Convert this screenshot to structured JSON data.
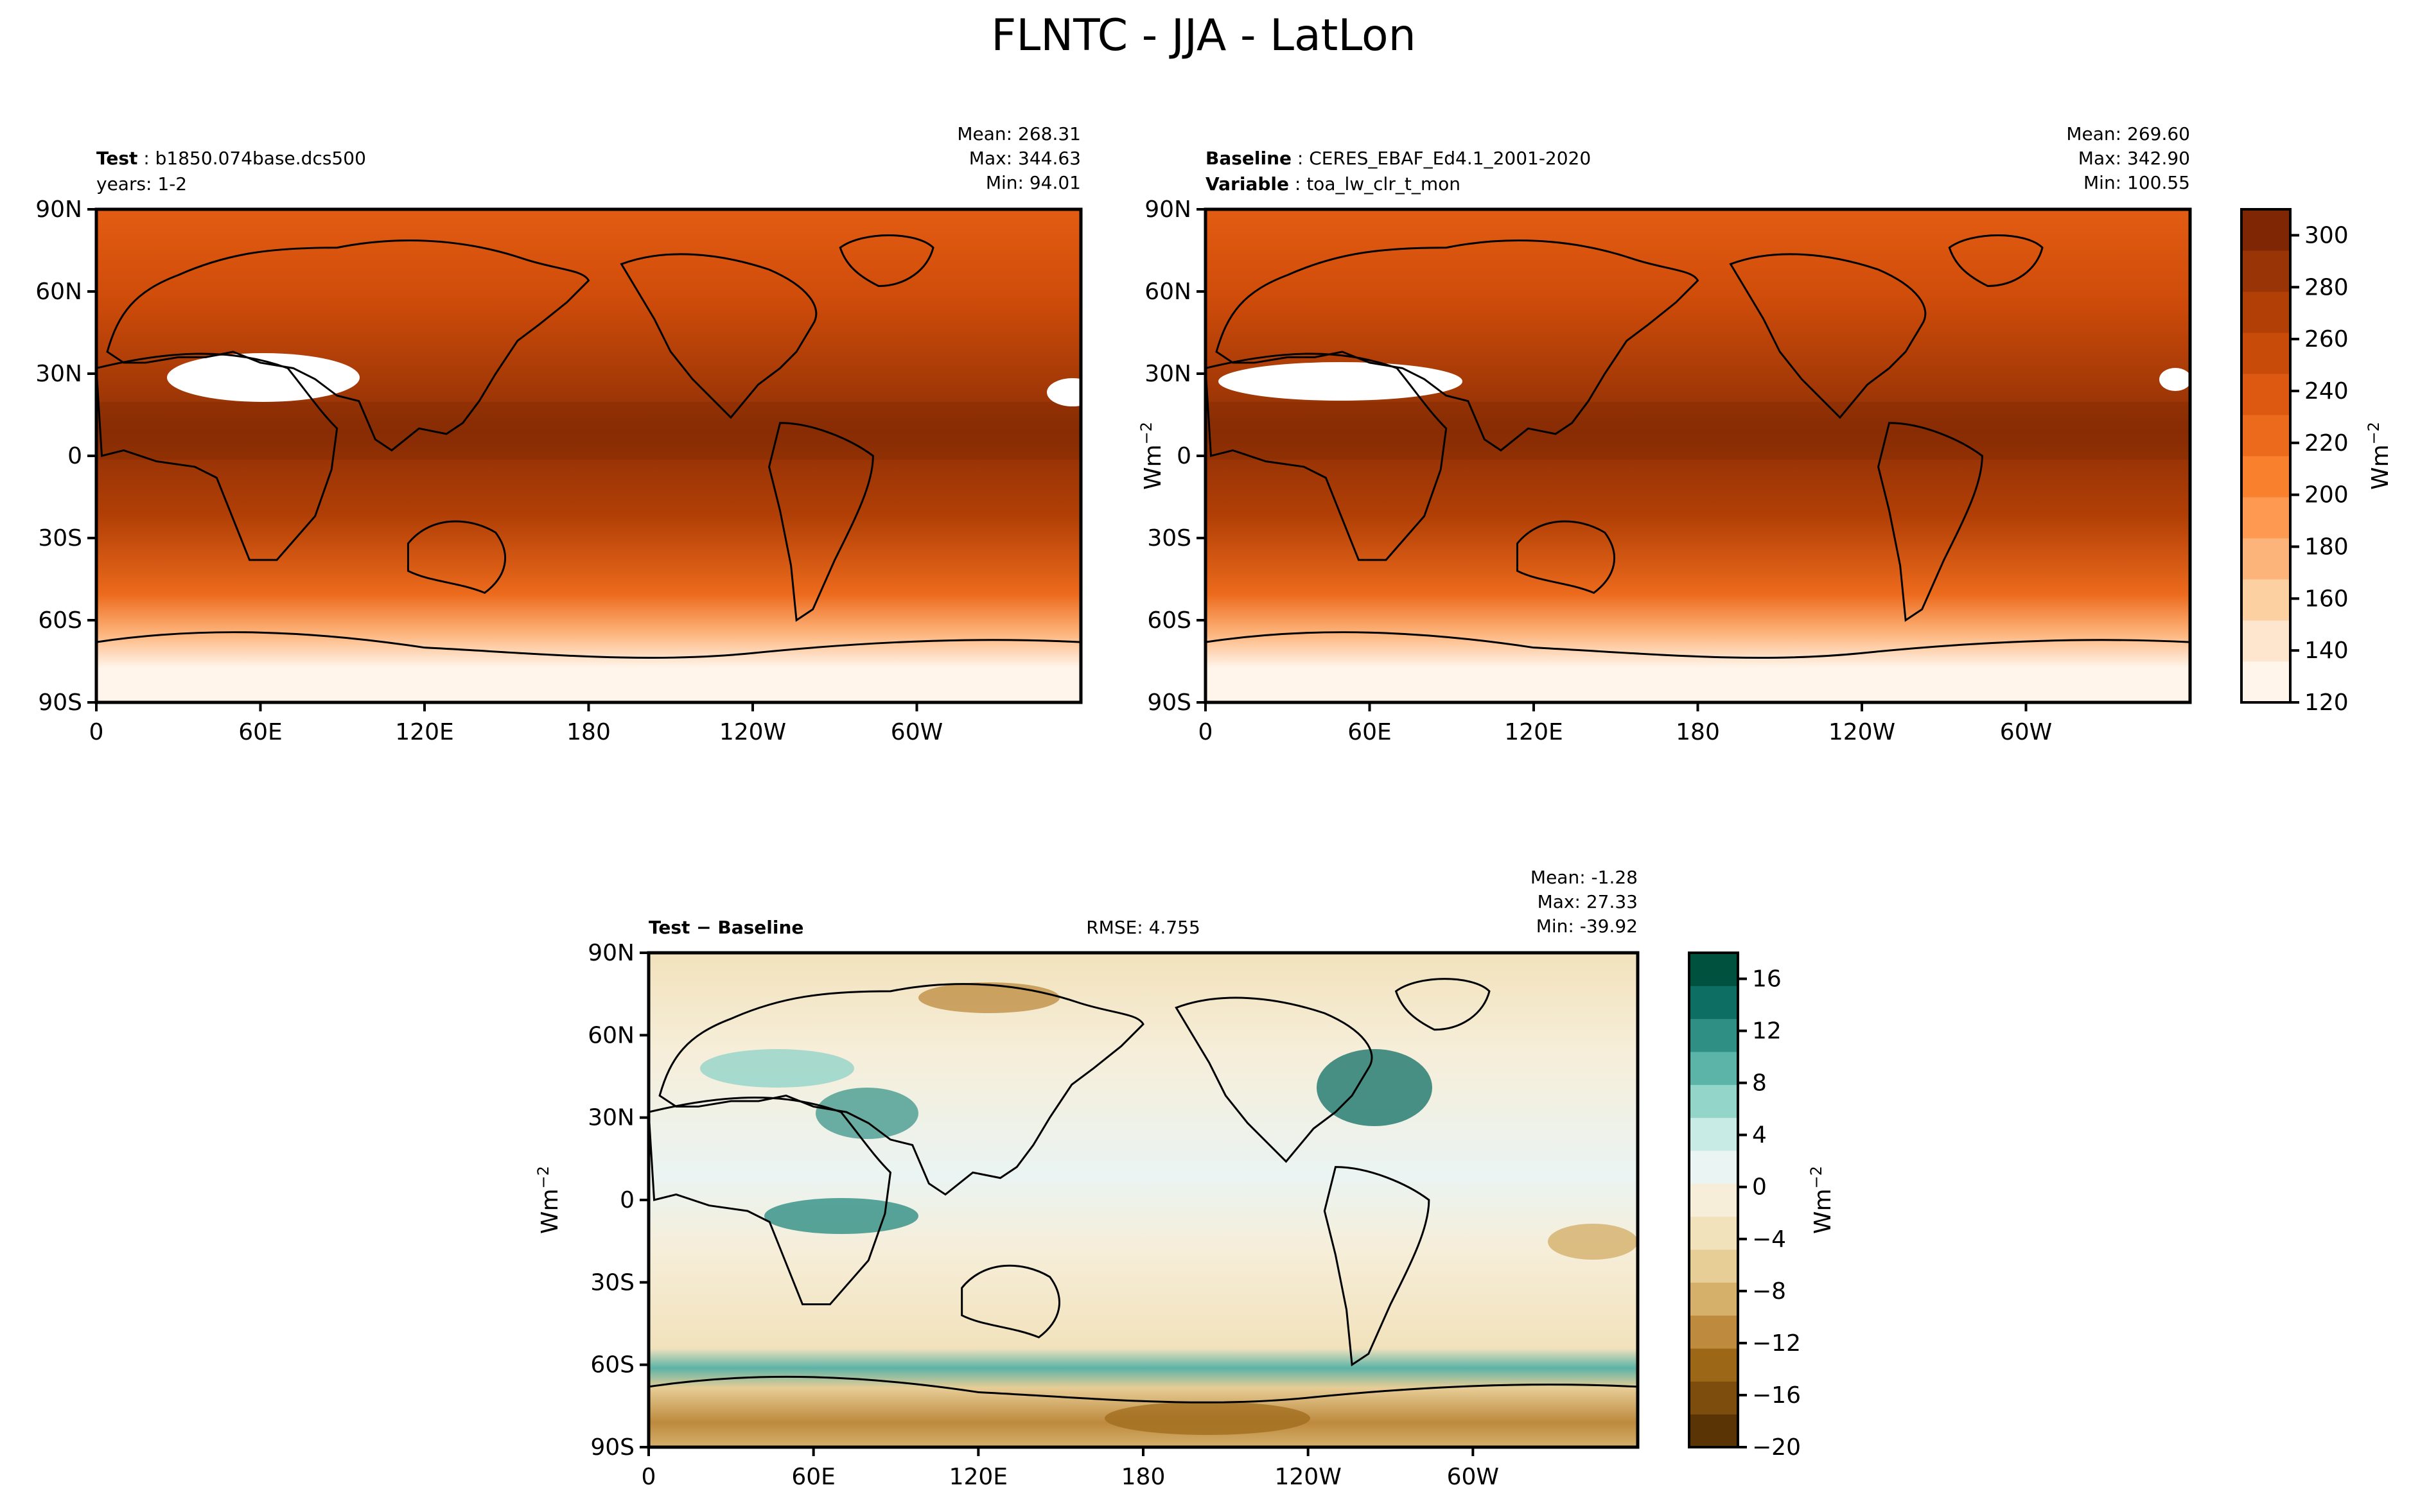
{
  "figure": {
    "title": "FLNTC - JJA - LatLon"
  },
  "panels": [
    {
      "id": "test",
      "label_bold": "Test",
      "label_text": "b1850.074base.dcs500",
      "line2_bold": "",
      "line2_text": "years: 1-2",
      "stats": {
        "mean": "Mean: 268.31",
        "max": "Max: 344.63",
        "min": "Min: 94.01"
      },
      "rmse": "",
      "colormap": "oranges"
    },
    {
      "id": "baseline",
      "label_bold": "Baseline",
      "label_text": "CERES_EBAF_Ed4.1_2001-2020",
      "line2_bold": "Variable",
      "line2_text": "toa_lw_clr_t_mon",
      "stats": {
        "mean": "Mean: 269.60",
        "max": "Max: 342.90",
        "min": "Min: 100.55"
      },
      "rmse": "",
      "colormap": "oranges"
    },
    {
      "id": "diff",
      "label_bold": "Test − Baseline",
      "label_text": "",
      "line2_bold": "",
      "line2_text": "",
      "stats": {
        "mean": "Mean: -1.28",
        "max": "Max: 27.33",
        "min": "Min: -39.92"
      },
      "rmse": "RMSE: 4.755",
      "colormap": "brbg"
    }
  ],
  "axes": {
    "lat_ticks": [
      "90N",
      "60N",
      "30N",
      "0",
      "30S",
      "60S",
      "90S"
    ],
    "lon_ticks": [
      "0",
      "60E",
      "120E",
      "180",
      "120W",
      "60W"
    ],
    "units_label": "Wm",
    "units_exp": "−2"
  },
  "colorbars": {
    "main": {
      "ticks": [
        "300",
        "280",
        "260",
        "240",
        "220",
        "200",
        "180",
        "160",
        "140",
        "120"
      ],
      "colors": [
        "#fff5eb",
        "#fee6ce",
        "#fdd0a2",
        "#fdb47b",
        "#fd9950",
        "#f9802d",
        "#ec6a1c",
        "#dd5810",
        "#c94b0a",
        "#b13f06",
        "#993407",
        "#7f2704"
      ]
    },
    "diff": {
      "ticks": [
        "16",
        "12",
        "8",
        "4",
        "0",
        "−4",
        "−8",
        "−12",
        "−16",
        "−20"
      ],
      "colors": [
        "#5a3405",
        "#7c4d0d",
        "#9c6818",
        "#bd8a3e",
        "#d5b06b",
        "#e7cd96",
        "#f2e2bc",
        "#f6eed9",
        "#eaf4f2",
        "#c8ebe5",
        "#94d5c9",
        "#5cb3a7",
        "#2f8f85",
        "#0d6e64",
        "#01513f"
      ]
    }
  }
}
